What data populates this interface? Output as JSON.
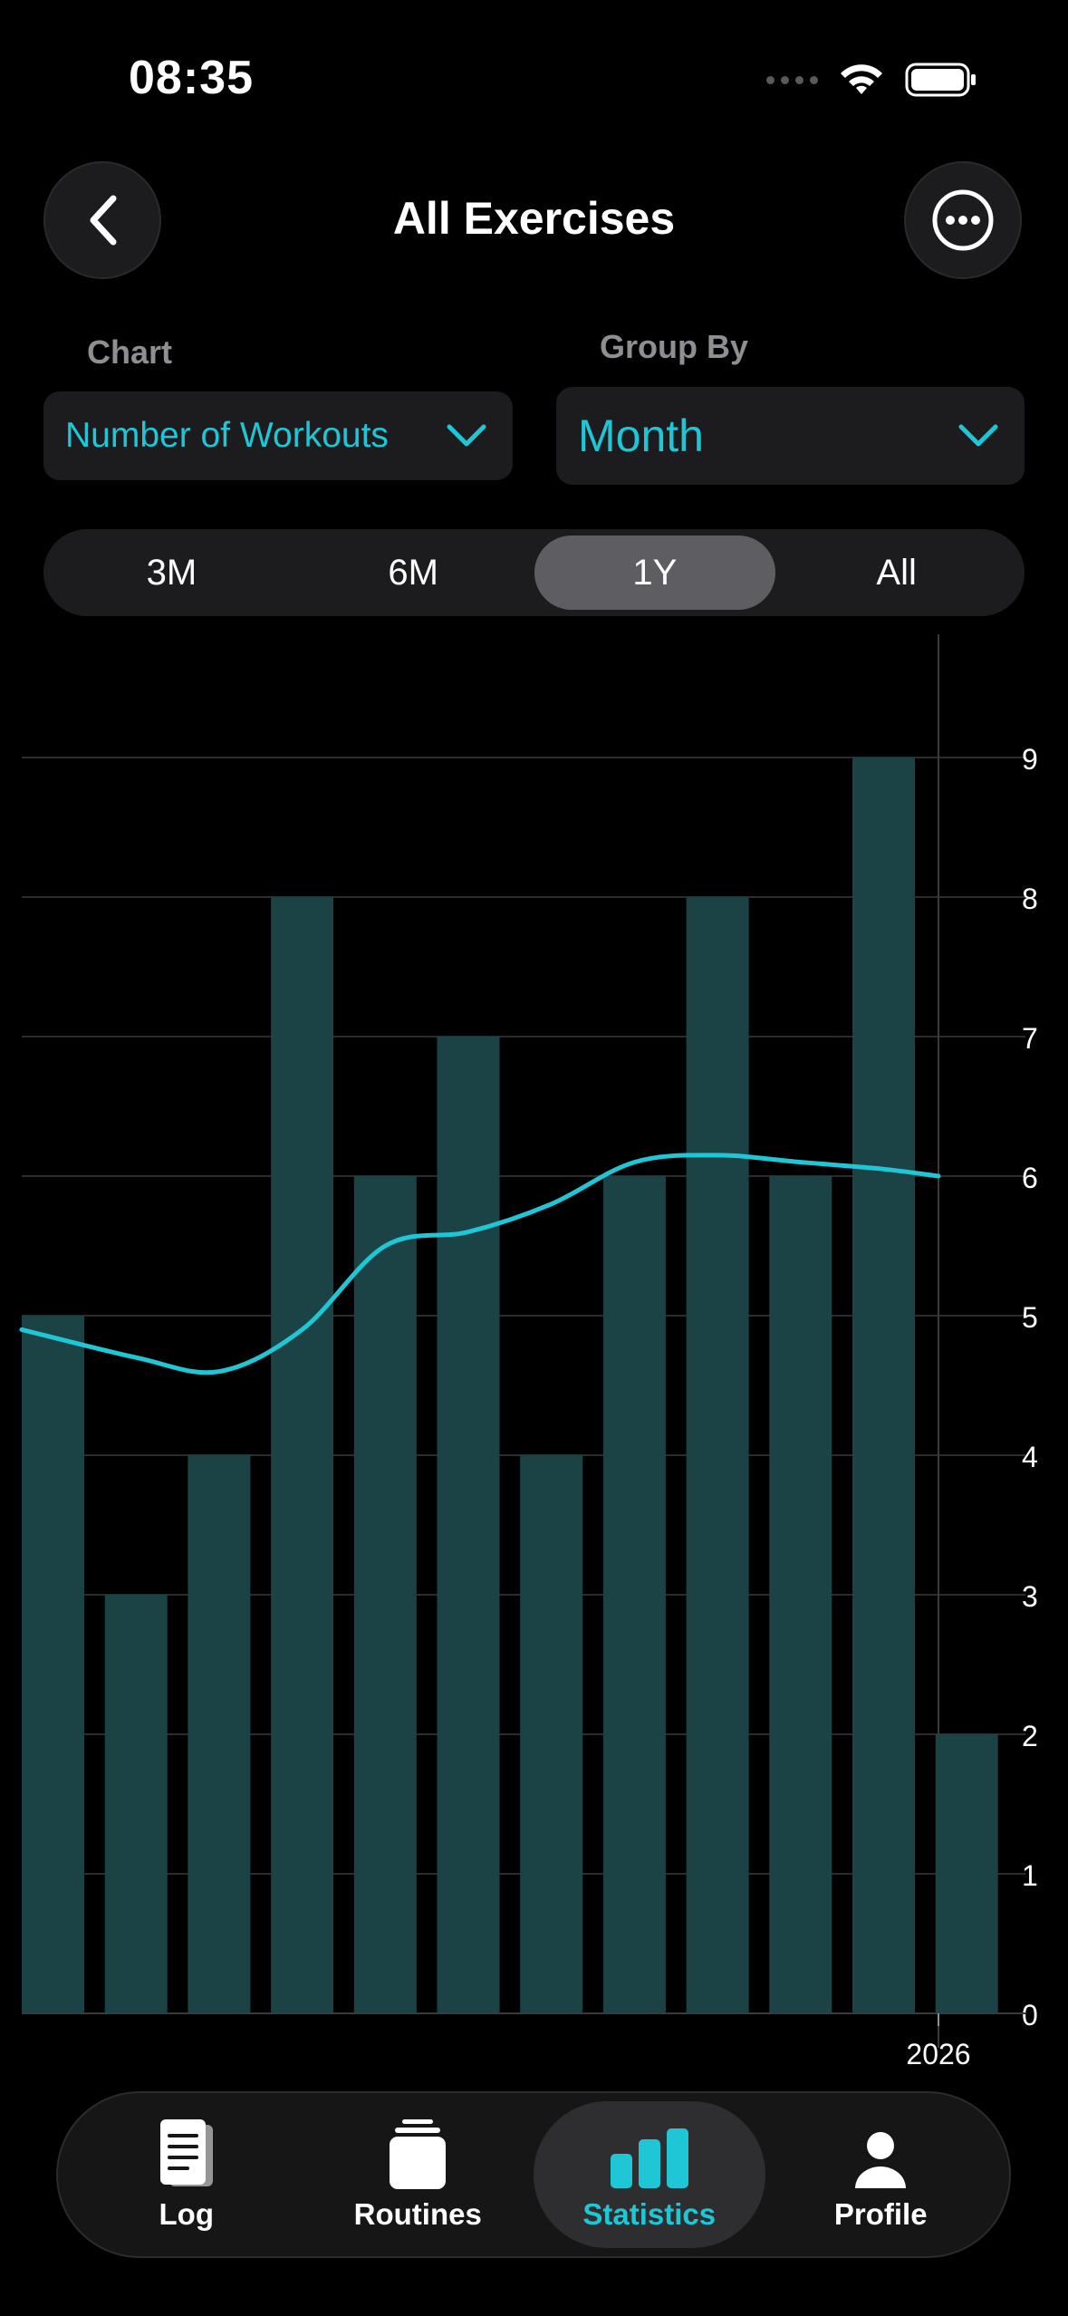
{
  "status_bar": {
    "time": "08:35"
  },
  "header": {
    "title": "All Exercises"
  },
  "controls": {
    "chart_label": "Chart",
    "chart_value": "Number of Workouts",
    "group_label": "Group By",
    "group_value": "Month"
  },
  "range_tabs": [
    {
      "label": "3M",
      "active": false
    },
    {
      "label": "6M",
      "active": false
    },
    {
      "label": "1Y",
      "active": true
    },
    {
      "label": "All",
      "active": false
    }
  ],
  "colors": {
    "accent": "#1ec6d6",
    "bar": "#1b4345",
    "line": "#1ec6d6",
    "background": "#000000"
  },
  "chart_data": {
    "type": "bar",
    "values": [
      5,
      3,
      4,
      8,
      6,
      7,
      4,
      6,
      8,
      6,
      9,
      2
    ],
    "trend_line": [
      4.9,
      4.7,
      4.6,
      4.9,
      5.5,
      5.6,
      5.8,
      6.1,
      6.15,
      6.1,
      6.05,
      6.0
    ],
    "x_tick_labels": [
      "2026"
    ],
    "y_ticks": [
      0,
      1,
      2,
      3,
      4,
      5,
      6,
      7,
      8,
      9
    ],
    "ylim": [
      0,
      9
    ],
    "grid": true,
    "y_axis_side": "right"
  },
  "tab_bar": [
    {
      "label": "Log",
      "icon": "log-icon",
      "active": false
    },
    {
      "label": "Routines",
      "icon": "routines-icon",
      "active": false
    },
    {
      "label": "Statistics",
      "icon": "statistics-icon",
      "active": true
    },
    {
      "label": "Profile",
      "icon": "profile-icon",
      "active": false
    }
  ]
}
